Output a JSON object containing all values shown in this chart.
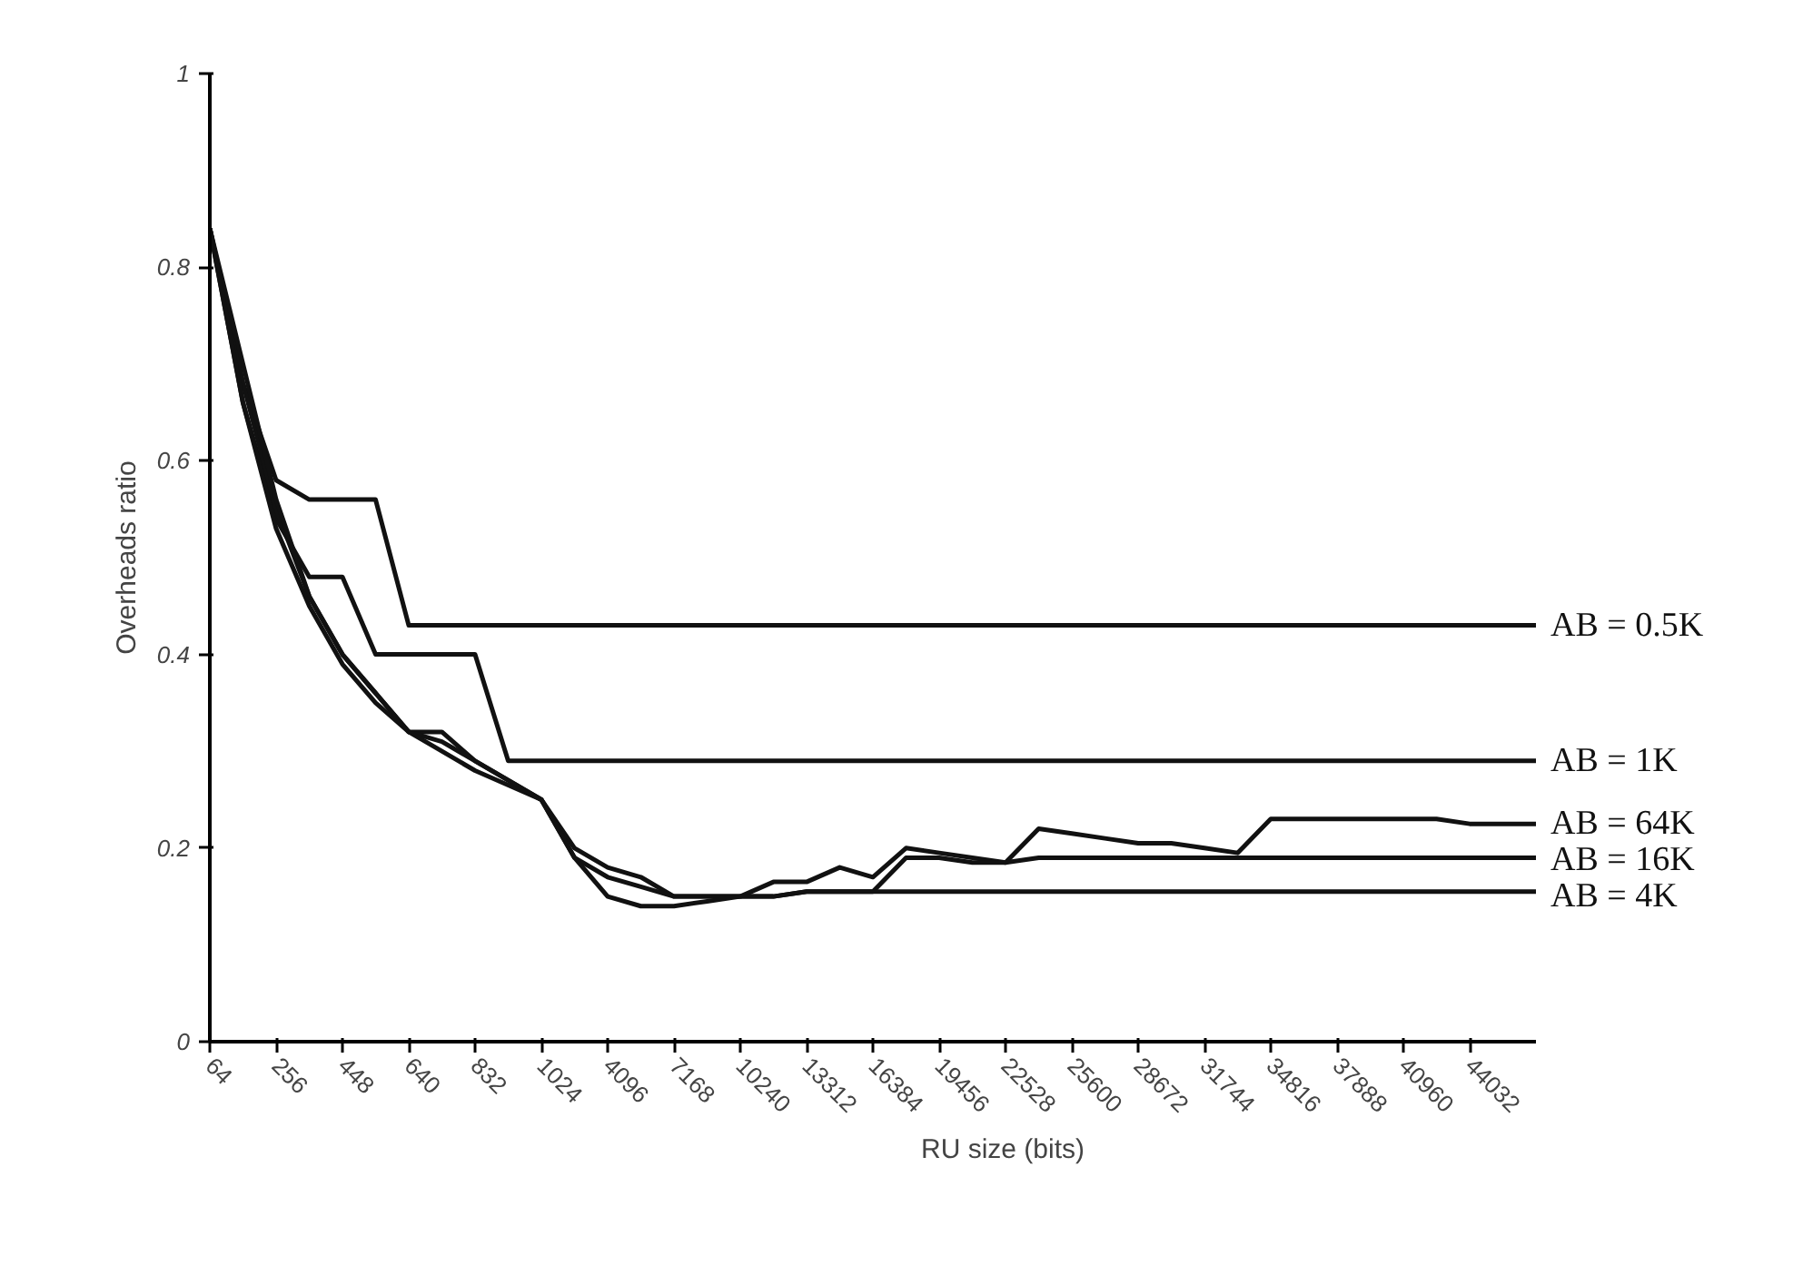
{
  "chart_data": {
    "type": "line",
    "xlabel": "RU size (bits)",
    "ylabel": "Overheads ratio",
    "categories": [
      "64",
      null,
      "256",
      null,
      "448",
      null,
      "640",
      null,
      "832",
      null,
      "1024",
      null,
      "4096",
      null,
      "7168",
      null,
      "10240",
      null,
      "13312",
      null,
      "16384",
      null,
      "19456",
      null,
      "22528",
      null,
      "25600",
      null,
      "28672",
      null,
      "31744",
      null,
      "34816",
      null,
      "37888",
      null,
      "40960",
      null,
      "44032",
      null,
      null
    ],
    "ylim": [
      0,
      1
    ],
    "yticks": [
      0,
      0.2,
      0.4,
      0.6,
      0.8,
      1
    ],
    "grid": false,
    "marker": "none",
    "line_style": "solid",
    "series": [
      {
        "name": "AB = 0.5K",
        "color": "#111111",
        "values": [
          0.84,
          0.68,
          0.58,
          0.56,
          0.56,
          0.56,
          0.43,
          0.43,
          0.43,
          0.43,
          0.43,
          0.43,
          0.43,
          0.43,
          0.43,
          0.43,
          0.43,
          0.43,
          0.43,
          0.43,
          0.43,
          0.43,
          0.43,
          0.43,
          0.43,
          0.43,
          0.43,
          0.43,
          0.43,
          0.43,
          0.43,
          0.43,
          0.43,
          0.43,
          0.43,
          0.43,
          0.43,
          0.43,
          0.43,
          0.43,
          0.43
        ]
      },
      {
        "name": "AB = 1K",
        "color": "#111111",
        "values": [
          0.84,
          0.66,
          0.54,
          0.48,
          0.48,
          0.4,
          0.4,
          0.4,
          0.4,
          0.29,
          0.29,
          0.29,
          0.29,
          0.29,
          0.29,
          0.29,
          0.29,
          0.29,
          0.29,
          0.29,
          0.29,
          0.29,
          0.29,
          0.29,
          0.29,
          0.29,
          0.29,
          0.29,
          0.29,
          0.29,
          0.29,
          0.29,
          0.29,
          0.29,
          0.29,
          0.29,
          0.29,
          0.29,
          0.29,
          0.29,
          0.29
        ]
      },
      {
        "name": "AB = 64K",
        "color": "#111111",
        "values": [
          0.84,
          0.68,
          0.55,
          0.46,
          0.4,
          0.36,
          0.32,
          0.32,
          0.29,
          0.27,
          0.25,
          0.2,
          0.18,
          0.17,
          0.15,
          0.15,
          0.15,
          0.165,
          0.165,
          0.18,
          0.17,
          0.2,
          0.195,
          0.19,
          0.185,
          0.22,
          0.215,
          0.21,
          0.205,
          0.205,
          0.2,
          0.195,
          0.23,
          0.23,
          0.23,
          0.23,
          0.23,
          0.23,
          0.225,
          0.225,
          0.225
        ]
      },
      {
        "name": "AB = 16K",
        "color": "#111111",
        "values": [
          0.84,
          0.7,
          0.56,
          0.46,
          0.4,
          0.36,
          0.32,
          0.31,
          0.29,
          0.27,
          0.25,
          0.19,
          0.17,
          0.16,
          0.15,
          0.15,
          0.15,
          0.15,
          0.155,
          0.155,
          0.155,
          0.19,
          0.19,
          0.185,
          0.185,
          0.19,
          0.19,
          0.19,
          0.19,
          0.19,
          0.19,
          0.19,
          0.19,
          0.19,
          0.19,
          0.19,
          0.19,
          0.19,
          0.19,
          0.19,
          0.19
        ]
      },
      {
        "name": "AB = 4K",
        "color": "#111111",
        "values": [
          0.84,
          0.66,
          0.53,
          0.45,
          0.39,
          0.35,
          0.32,
          0.3,
          0.28,
          0.265,
          0.25,
          0.19,
          0.15,
          0.14,
          0.14,
          0.145,
          0.15,
          0.15,
          0.155,
          0.155,
          0.155,
          0.155,
          0.155,
          0.155,
          0.155,
          0.155,
          0.155,
          0.155,
          0.155,
          0.155,
          0.155,
          0.155,
          0.155,
          0.155,
          0.155,
          0.155,
          0.155,
          0.155,
          0.155,
          0.155,
          0.155
        ]
      }
    ]
  }
}
